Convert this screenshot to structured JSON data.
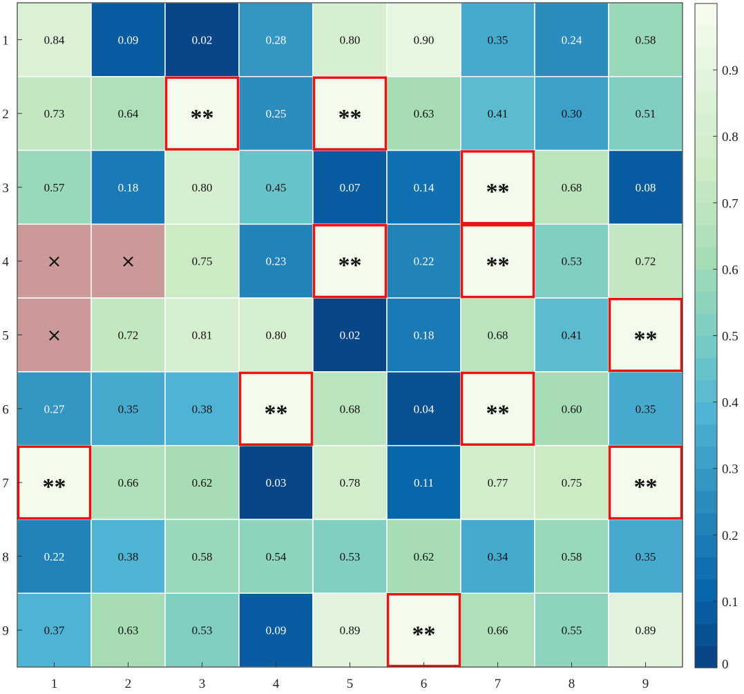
{
  "chart_data": {
    "type": "heatmap",
    "title": "",
    "xlabel": "",
    "ylabel": "",
    "x_categories": [
      "1",
      "2",
      "3",
      "4",
      "5",
      "6",
      "7",
      "8",
      "9"
    ],
    "y_categories": [
      "1",
      "2",
      "3",
      "4",
      "5",
      "6",
      "7",
      "8",
      "9"
    ],
    "values": [
      [
        0.84,
        0.09,
        0.02,
        0.28,
        0.8,
        0.9,
        0.35,
        0.24,
        0.58
      ],
      [
        0.73,
        0.64,
        "**",
        0.25,
        "**",
        0.63,
        0.41,
        0.3,
        0.51
      ],
      [
        0.57,
        0.18,
        0.8,
        0.45,
        0.07,
        0.14,
        "**",
        0.68,
        0.08
      ],
      [
        "×",
        "×",
        0.75,
        0.23,
        "**",
        0.22,
        "**",
        0.53,
        0.72
      ],
      [
        "×",
        0.72,
        0.81,
        0.8,
        0.02,
        0.18,
        0.68,
        0.41,
        "**"
      ],
      [
        0.27,
        0.35,
        0.38,
        "**",
        0.68,
        0.04,
        "**",
        0.6,
        0.35
      ],
      [
        "**",
        0.66,
        0.62,
        0.03,
        0.78,
        0.11,
        0.77,
        0.75,
        "**"
      ],
      [
        0.22,
        0.38,
        0.58,
        0.54,
        0.53,
        0.62,
        0.34,
        0.58,
        0.35
      ],
      [
        0.37,
        0.63,
        0.53,
        0.09,
        0.89,
        "**",
        0.66,
        0.55,
        0.89
      ]
    ],
    "colorbar": {
      "range": [
        0,
        1
      ],
      "ticks": [
        "0",
        "0.1",
        "0.2",
        "0.3",
        "0.4",
        "0.5",
        "0.6",
        "0.7",
        "0.8",
        "0.9"
      ],
      "colormap": "GnBu (reversed: dark blue at 0, near-white at 1)",
      "levels": 30
    },
    "highlight_color": "#ee1111",
    "missing_color": "#cc9999",
    "grid": false
  }
}
